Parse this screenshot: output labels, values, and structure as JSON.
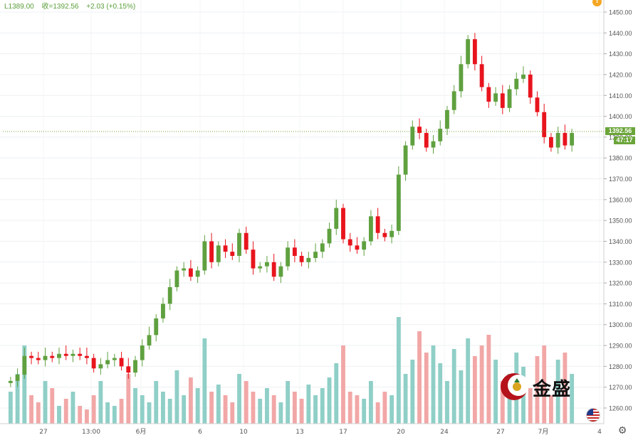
{
  "header": {
    "low_label": "L1389.00",
    "close_label": "收=1392.56",
    "change_label": "+2.03 (+0.15%)",
    "alert_badge": "!"
  },
  "price_axis": {
    "ticks": [
      "1450.00",
      "1440.00",
      "1430.00",
      "1420.00",
      "1410.00",
      "1400.00",
      "1390.00",
      "1380.00",
      "1370.00",
      "1360.00",
      "1350.00",
      "1340.00",
      "1330.00",
      "1320.00",
      "1310.00",
      "1300.00",
      "1290.00",
      "1280.00",
      "1270.00",
      "1260.00"
    ],
    "current_price_label": "1392.56",
    "countdown_label": "47:17"
  },
  "time_axis": {
    "ticks": [
      "27",
      "13:00",
      "6月",
      "6",
      "10",
      "13",
      "17",
      "20",
      "24",
      "27",
      "7月",
      "4"
    ]
  },
  "watermark": {
    "text": "金盛",
    "logo": "jinsheng-logo"
  },
  "icons": {
    "settings": "gear-icon",
    "flag": "us-flag-icon"
  },
  "colors": {
    "up": "#5fa03f",
    "down": "#e8141d",
    "vol_up": "#8fcfc7",
    "vol_down": "#f2a7a7",
    "accent": "#6ba539"
  },
  "chart_data": {
    "type": "candlestick",
    "ylim": [
      1255,
      1452
    ],
    "current_price": 1392.56,
    "close_series": [
      1273,
      1276,
      1285,
      1284,
      1283,
      1285,
      1284,
      1286,
      1285,
      1286,
      1285,
      1284,
      1279,
      1281,
      1283,
      1284,
      1280,
      1277,
      1283,
      1290,
      1295,
      1303,
      1310,
      1318,
      1326,
      1327,
      1323,
      1326,
      1340,
      1330,
      1338,
      1335,
      1333,
      1344,
      1336,
      1327,
      1328,
      1330,
      1323,
      1328,
      1337,
      1333,
      1330,
      1332,
      1335,
      1339,
      1346,
      1356,
      1341,
      1338,
      1336,
      1340,
      1352,
      1344,
      1342,
      1345,
      1372,
      1386,
      1395,
      1392,
      1385,
      1388,
      1394,
      1403,
      1412,
      1425,
      1437,
      1425,
      1414,
      1407,
      1411,
      1404,
      1413,
      1418,
      1420,
      1409,
      1402,
      1390,
      1385,
      1392,
      1386,
      1392
    ]
  }
}
